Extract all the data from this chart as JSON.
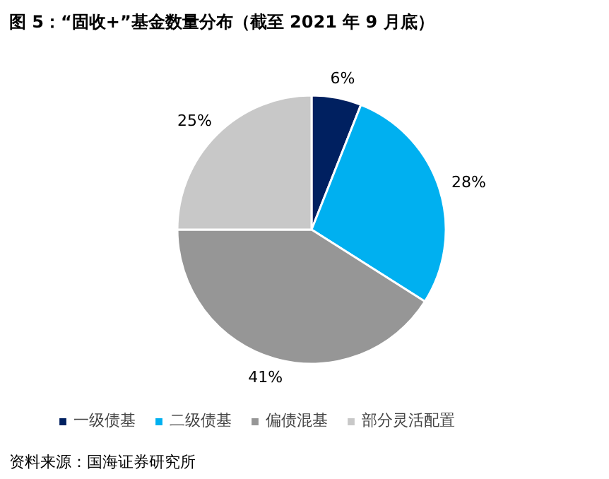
{
  "chart_data": {
    "type": "pie",
    "title": "图 5：“固收+”基金数量分布（截至 2021 年 9 月底）",
    "categories": [
      "一级债基",
      "二级债基",
      "偏债混基",
      "部分灵活配置"
    ],
    "values": [
      6,
      28,
      41,
      25
    ],
    "value_labels": [
      "6%",
      "28%",
      "41%",
      "25%"
    ],
    "colors": [
      "#002060",
      "#00b0f0",
      "#969696",
      "#c8c8c8"
    ],
    "legend": "bottom",
    "annotations": [
      "资料来源：国海证券研究所"
    ]
  }
}
